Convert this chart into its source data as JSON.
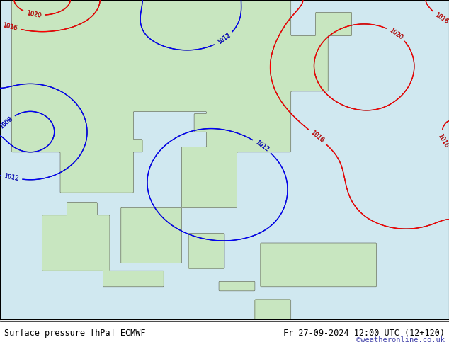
{
  "bottom_left_text": "Surface pressure [hPa] ECMWF",
  "bottom_right_text": "Fr 27-09-2024 12:00 UTC (12+120)",
  "copyright_text": "©weatheronline.co.uk",
  "bg_color": "#d0e8f0",
  "land_color": "#c8e6c0",
  "fig_width": 6.34,
  "fig_height": 4.9,
  "dpi": 100
}
